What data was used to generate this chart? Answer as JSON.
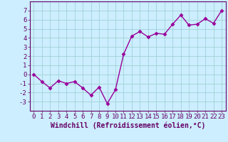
{
  "x": [
    0,
    1,
    2,
    3,
    4,
    5,
    6,
    7,
    8,
    9,
    10,
    11,
    12,
    13,
    14,
    15,
    16,
    17,
    18,
    19,
    20,
    21,
    22,
    23
  ],
  "y": [
    0,
    -0.8,
    -1.5,
    -0.7,
    -1.0,
    -0.8,
    -1.5,
    -2.3,
    -1.4,
    -3.2,
    -1.7,
    2.2,
    4.2,
    4.7,
    4.1,
    4.5,
    4.4,
    5.5,
    6.5,
    5.4,
    5.5,
    6.1,
    5.6,
    7.0
  ],
  "line_color": "#990099",
  "marker": "D",
  "marker_size": 2.5,
  "bg_color": "#cceeff",
  "grid_color": "#99cccc",
  "xlabel": "Windchill (Refroidissement éolien,°C)",
  "xlabel_color": "#660066",
  "tick_color": "#660066",
  "ylim": [
    -4,
    8
  ],
  "xlim": [
    -0.5,
    23.5
  ],
  "yticks": [
    -3,
    -2,
    -1,
    0,
    1,
    2,
    3,
    4,
    5,
    6,
    7
  ],
  "xticks": [
    0,
    1,
    2,
    3,
    4,
    5,
    6,
    7,
    8,
    9,
    10,
    11,
    12,
    13,
    14,
    15,
    16,
    17,
    18,
    19,
    20,
    21,
    22,
    23
  ],
  "spine_color": "#660066",
  "font_size": 6.5,
  "xlabel_fontsize": 7.0,
  "linewidth": 1.0
}
